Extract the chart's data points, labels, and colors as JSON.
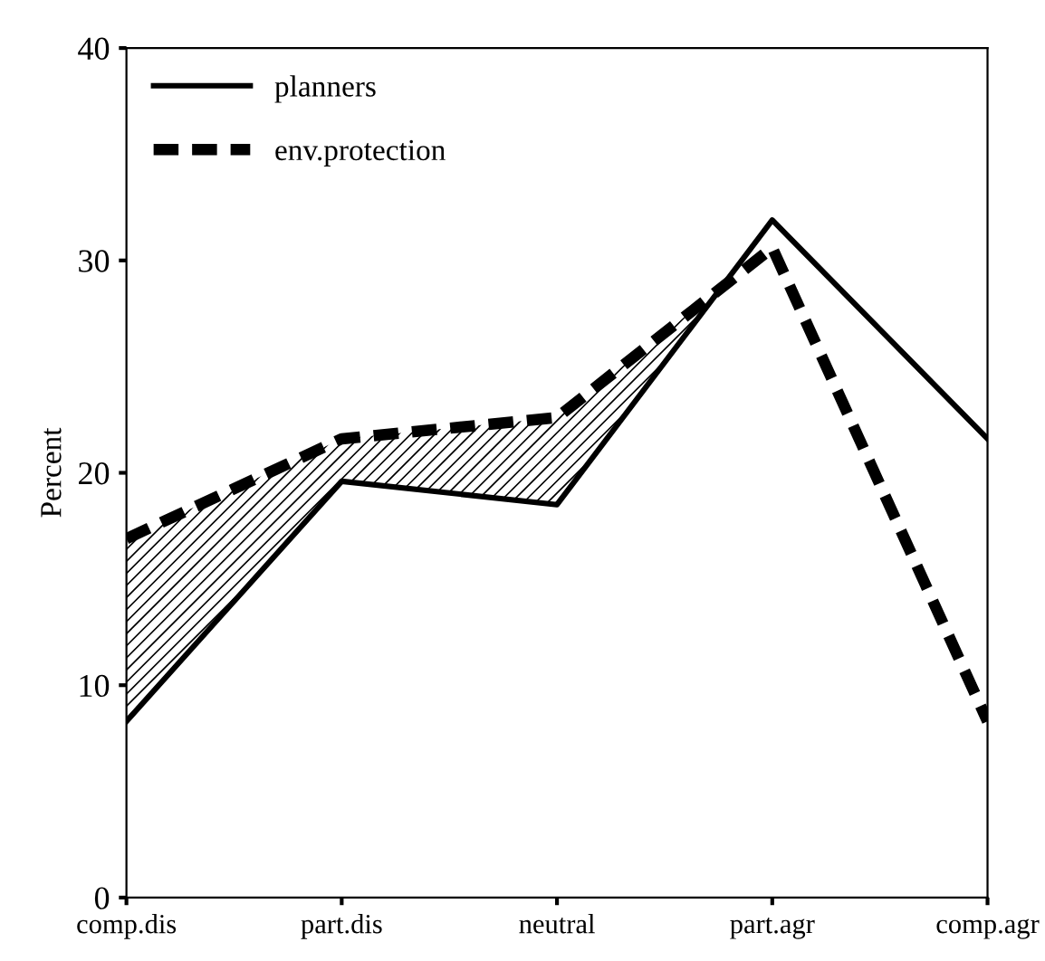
{
  "chart_data": {
    "type": "line",
    "ylabel": "Percent",
    "categories": [
      "comp.dis",
      "part.dis",
      "neutral",
      "part.agr",
      "comp.agr"
    ],
    "series": [
      {
        "name": "planners",
        "color": "#000000",
        "line_style": "solid",
        "values": [
          8.3,
          19.6,
          18.5,
          31.9,
          21.6
        ]
      },
      {
        "name": "env.protection",
        "color": "#000000",
        "line_style": "dashed",
        "values": [
          16.9,
          21.6,
          22.6,
          30.6,
          8.3
        ]
      }
    ],
    "ylim": [
      0,
      40
    ],
    "yticks": [
      0,
      10,
      20,
      30,
      40
    ],
    "grid": false,
    "legend": "top left",
    "marker": "none"
  }
}
